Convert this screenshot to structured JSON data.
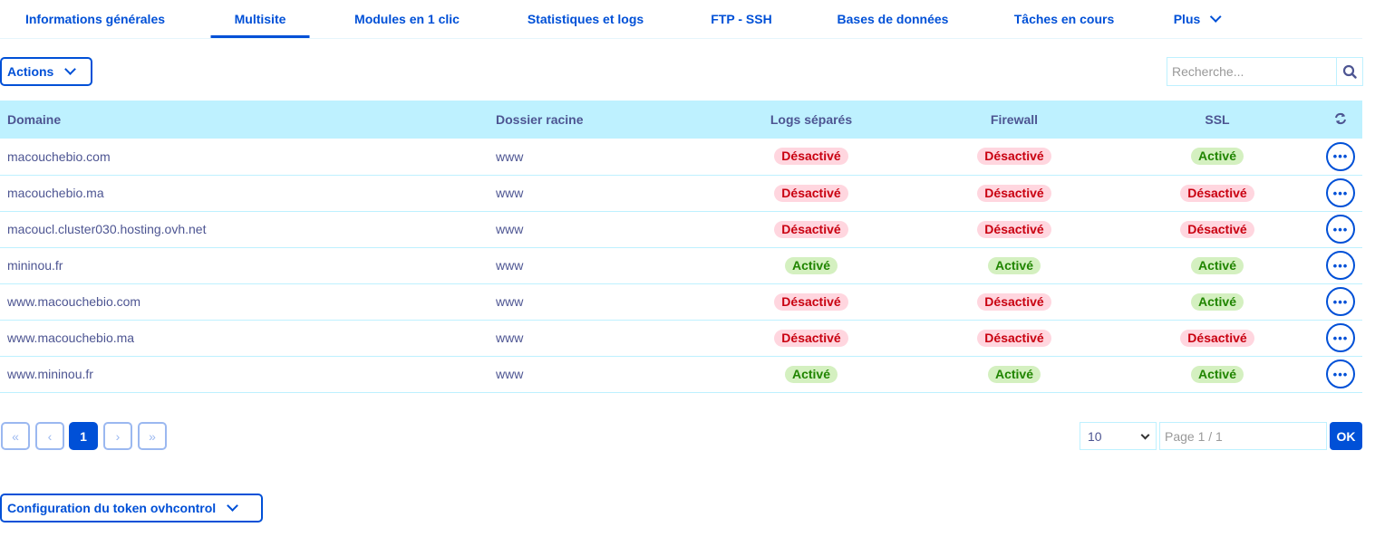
{
  "tabs": [
    {
      "label": "Informations générales"
    },
    {
      "label": "Multisite",
      "active": true
    },
    {
      "label": "Modules en 1 clic"
    },
    {
      "label": "Statistiques et logs"
    },
    {
      "label": "FTP - SSH"
    },
    {
      "label": "Bases de données"
    },
    {
      "label": "Tâches en cours"
    },
    {
      "label": "Plus"
    }
  ],
  "toolbar": {
    "actions_label": "Actions",
    "search_placeholder": "Recherche..."
  },
  "table": {
    "headers": [
      "Domaine",
      "Dossier racine",
      "Logs séparés",
      "Firewall",
      "SSL"
    ],
    "rows": [
      [
        "macouchebio.com",
        "www",
        "Désactivé",
        "Désactivé",
        "Activé"
      ],
      [
        "macouchebio.ma",
        "www",
        "Désactivé",
        "Désactivé",
        "Désactivé"
      ],
      [
        "macoucl.cluster030.hosting.ovh.net",
        "www",
        "Désactivé",
        "Désactivé",
        "Désactivé"
      ],
      [
        "mininou.fr",
        "www",
        "Activé",
        "Activé",
        "Activé"
      ],
      [
        "www.macouchebio.com",
        "www",
        "Désactivé",
        "Désactivé",
        "Activé"
      ],
      [
        "www.macouchebio.ma",
        "www",
        "Désactivé",
        "Désactivé",
        "Désactivé"
      ],
      [
        "www.mininou.fr",
        "www",
        "Activé",
        "Activé",
        "Activé"
      ]
    ],
    "more_label": "•••"
  },
  "pagination": {
    "first": "«",
    "prev": "‹",
    "current": "1",
    "next": "›",
    "last": "»",
    "page_size": "10",
    "page_input_placeholder": "Page 1 / 1",
    "ok_label": "OK"
  },
  "token_config": {
    "label": "Configuration du token ovhcontrol"
  },
  "colors": {
    "accent": "#0050d7",
    "header_bg": "#bef1ff",
    "active_bg": "#d4f0c0",
    "inactive_bg": "#ffd6df"
  }
}
